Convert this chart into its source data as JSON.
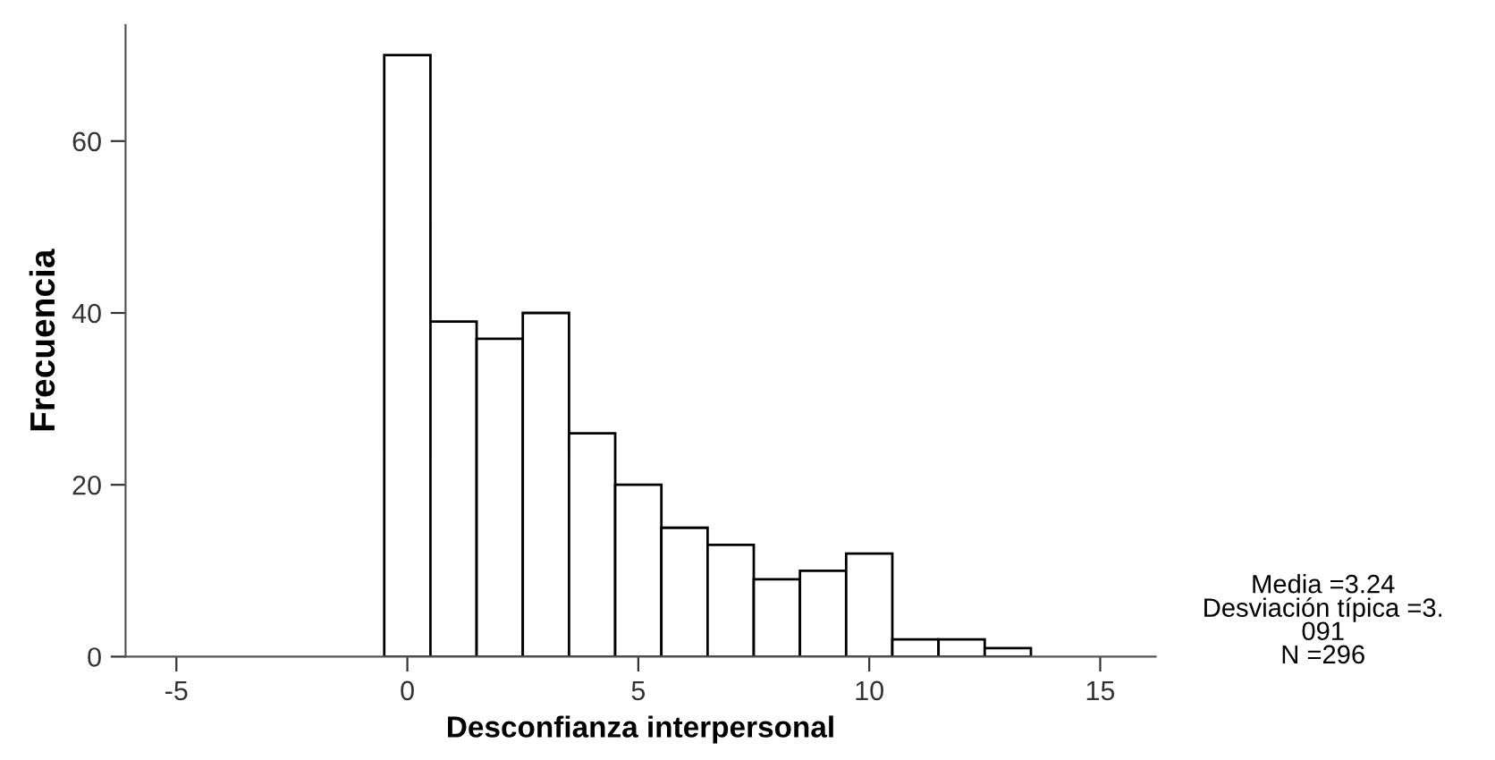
{
  "chart_data": {
    "type": "histogram",
    "xlabel": "Desconfianza interpersonal",
    "ylabel": "Frecuencia",
    "bins": [
      -0.5,
      0.5,
      1.5,
      2.5,
      3.5,
      4.5,
      5.5,
      6.5,
      7.5,
      8.5,
      9.5,
      10.5,
      11.5,
      12.5,
      13.5
    ],
    "values": [
      70,
      39,
      37,
      40,
      26,
      20,
      15,
      13,
      9,
      10,
      12,
      2,
      2,
      1
    ],
    "color": "#ffffff",
    "xlim": [
      -6.1,
      16.2
    ],
    "xticks": [
      -5,
      0,
      5,
      10,
      15
    ],
    "ylim": [
      0,
      73.5
    ],
    "yticks": [
      0,
      20,
      40,
      60
    ],
    "grid": false,
    "annotations": [
      "Media =3.24\nDesviación típica =3.\n091\nN =296"
    ]
  }
}
